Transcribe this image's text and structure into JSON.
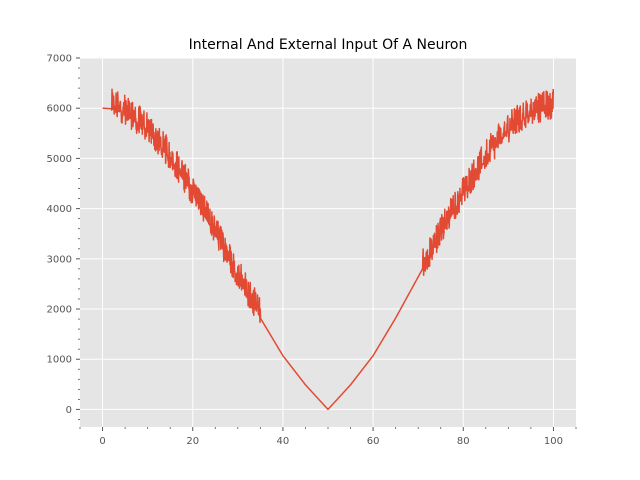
{
  "chart_data": {
    "type": "line",
    "title": "Internal And External Input Of A Neuron",
    "xlabel": "",
    "ylabel": "",
    "xlim": [
      -5,
      105
    ],
    "ylim": [
      -350,
      7000
    ],
    "x_ticks": [
      0,
      20,
      40,
      60,
      80,
      100
    ],
    "y_ticks": [
      0,
      1000,
      2000,
      3000,
      4000,
      5000,
      6000,
      7000
    ],
    "grid": true,
    "legend": "none",
    "background_color": "#E5E5E5",
    "grid_color": "#FFFFFF",
    "series": [
      {
        "color": "#E24A33",
        "x": [
          0,
          2,
          5,
          10,
          15,
          20,
          25,
          30,
          35,
          40,
          45,
          50,
          55,
          60,
          65,
          70,
          75,
          80,
          85,
          90,
          95,
          100
        ],
        "values": [
          6000,
          5990,
          5890,
          5530,
          4980,
          4280,
          3470,
          2640,
          1820,
          1070,
          490,
          0,
          490,
          1070,
          1820,
          2640,
          3470,
          4280,
          4980,
          5530,
          5890,
          6000
        ],
        "noisy_ranges": [
          [
            2,
            35
          ],
          [
            71,
            100
          ]
        ],
        "noise_amplitude": 550
      }
    ]
  }
}
